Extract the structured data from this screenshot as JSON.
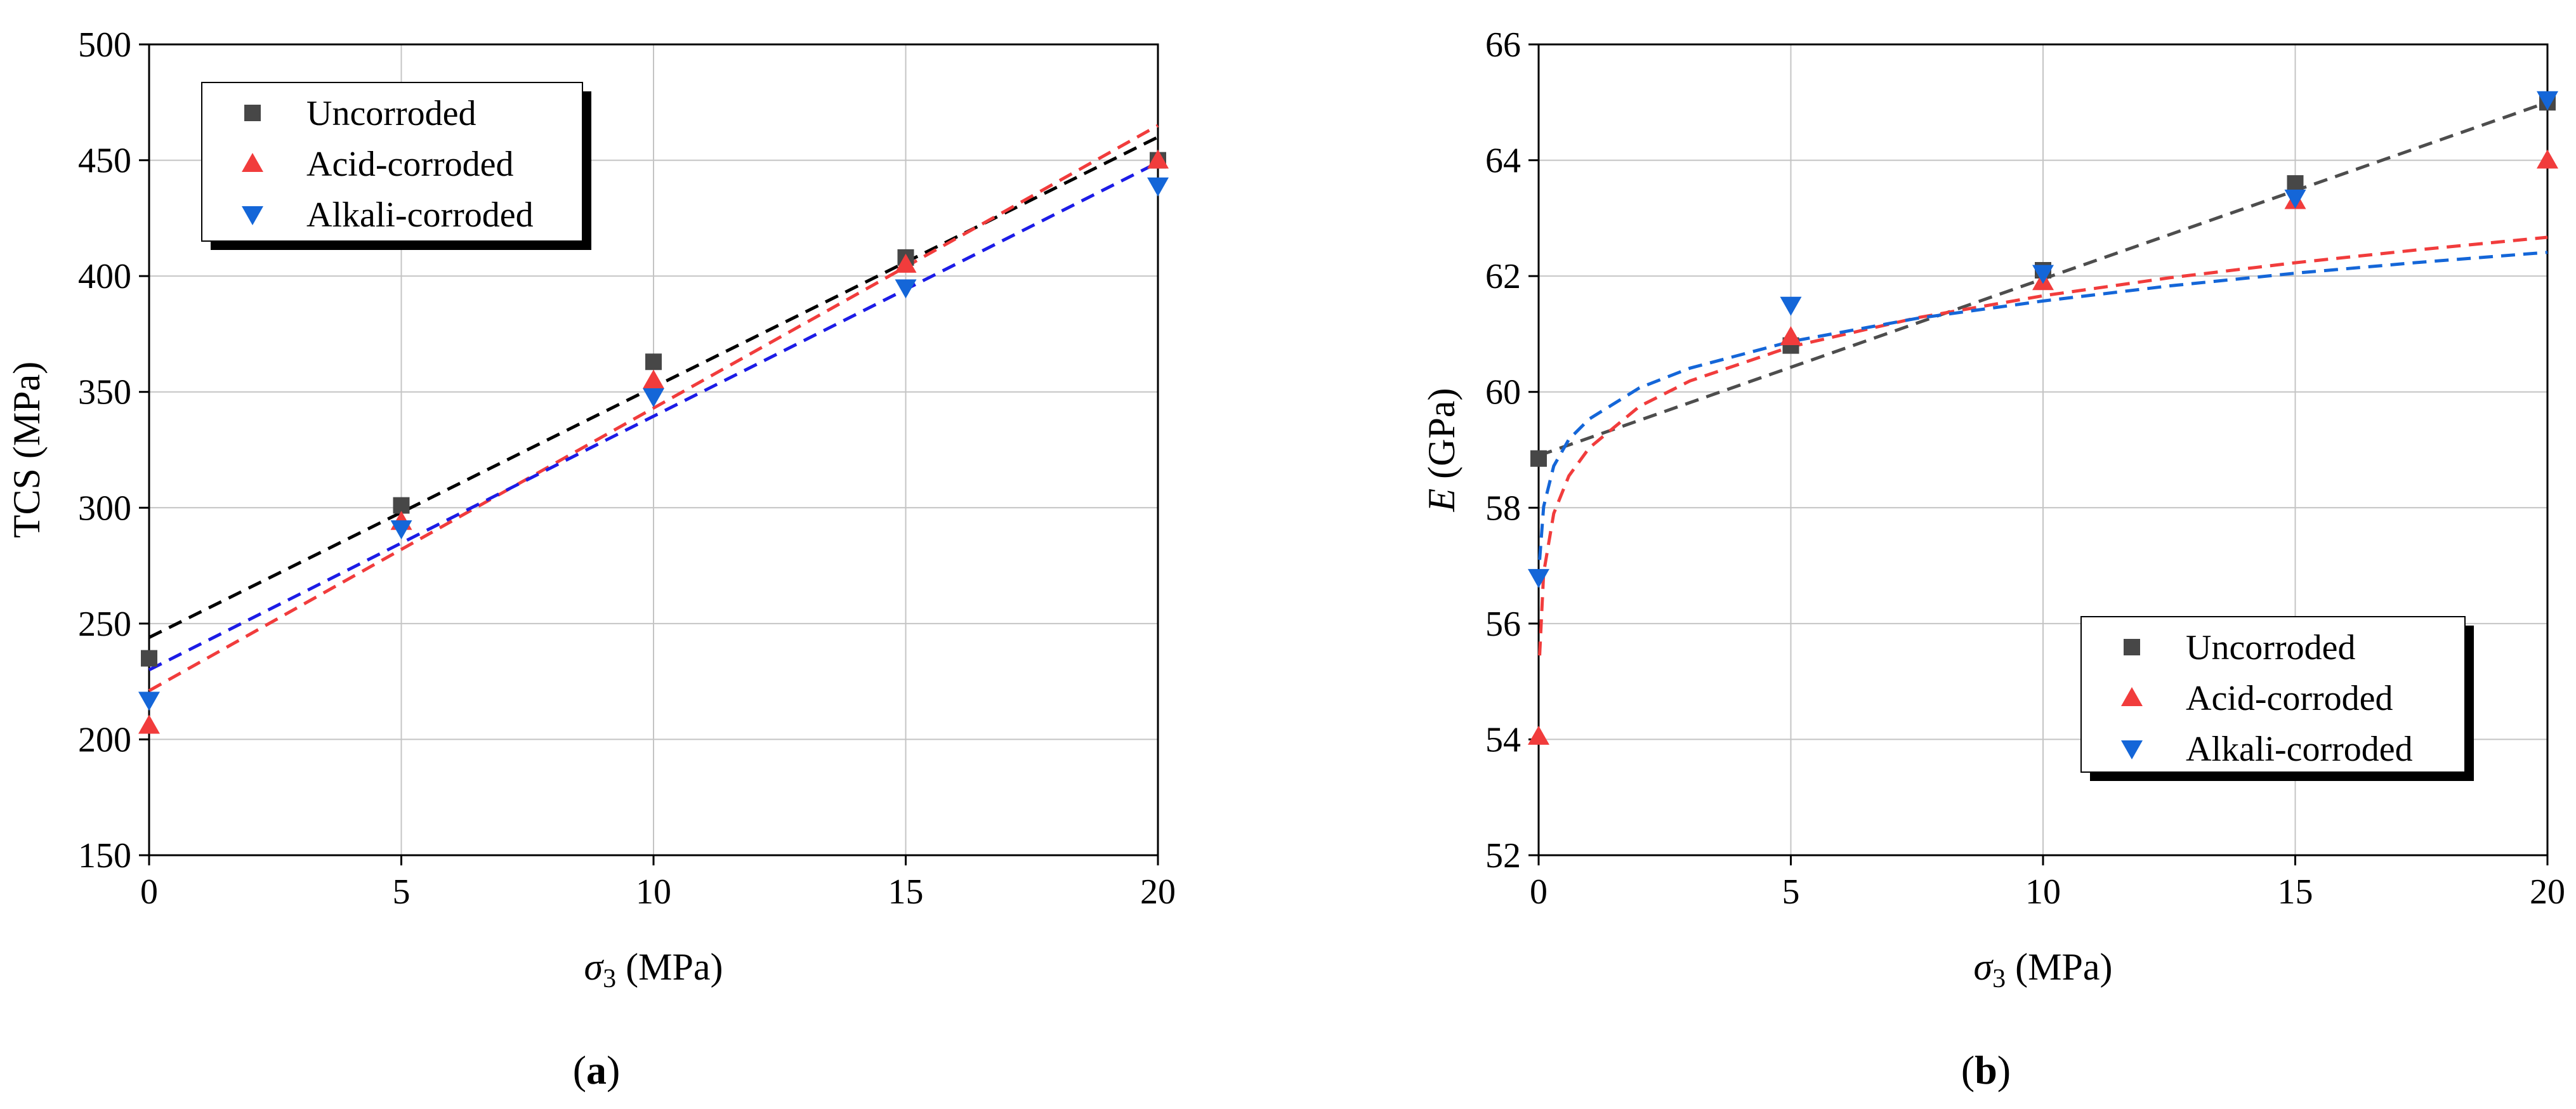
{
  "chart_data": [
    {
      "type": "scatter",
      "panel_label": "a",
      "xlabel": {
        "symbol": "σ",
        "subscript": "3",
        "unit": " (MPa)"
      },
      "ylabel": "TCS (MPa)",
      "xlim": [
        0,
        20
      ],
      "ylim": [
        150,
        500
      ],
      "xticks": [
        0,
        5,
        10,
        15,
        20
      ],
      "yticks": [
        150,
        200,
        250,
        300,
        350,
        400,
        450,
        500
      ],
      "grid": true,
      "legend_position": "top-left",
      "x": [
        0,
        5,
        10,
        15,
        20
      ],
      "series": [
        {
          "name": "Uncorroded",
          "marker": "square",
          "color": "#474747",
          "values": [
            235,
            301,
            363,
            408,
            450
          ]
        },
        {
          "name": "Acid-corroded",
          "marker": "triangle-up",
          "color": "#f13c3c",
          "values": [
            206,
            294,
            355,
            405,
            450
          ]
        },
        {
          "name": "Alkali-corroded",
          "marker": "triangle-down",
          "color": "#1466d8",
          "values": [
            217,
            291,
            348,
            395,
            439
          ]
        }
      ],
      "fit_lines": [
        {
          "series": "Uncorroded",
          "color": "#000000",
          "model": "linear",
          "x": [
            0,
            20
          ],
          "y": [
            244,
            460
          ]
        },
        {
          "series": "Acid-corroded",
          "color": "#f13c3c",
          "model": "linear",
          "x": [
            0,
            20
          ],
          "y": [
            221,
            465
          ]
        },
        {
          "series": "Alkali-corroded",
          "color": "#1c1ce6",
          "model": "linear",
          "x": [
            0,
            20
          ],
          "y": [
            230,
            449
          ]
        }
      ]
    },
    {
      "type": "scatter",
      "panel_label": "b",
      "xlabel": {
        "symbol": "σ",
        "subscript": "3",
        "unit": " (MPa)"
      },
      "ylabel": {
        "symbol": "E",
        "unit": " (GPa)"
      },
      "xlim": [
        0,
        20
      ],
      "ylim": [
        52,
        66
      ],
      "xticks": [
        0,
        5,
        10,
        15,
        20
      ],
      "yticks": [
        52,
        54,
        56,
        58,
        60,
        62,
        64,
        66
      ],
      "grid": true,
      "legend_position": "bottom-right",
      "x": [
        0,
        5,
        10,
        15,
        20
      ],
      "series": [
        {
          "name": "Uncorroded",
          "marker": "square",
          "color": "#474747",
          "values": [
            58.85,
            60.8,
            62.1,
            63.6,
            65.0
          ]
        },
        {
          "name": "Acid-corroded",
          "marker": "triangle-up",
          "color": "#f13c3c",
          "values": [
            54.05,
            60.95,
            61.9,
            63.3,
            64.0
          ]
        },
        {
          "name": "Alkali-corroded",
          "marker": "triangle-down",
          "color": "#1466d8",
          "values": [
            56.8,
            61.5,
            62.05,
            63.35,
            65.05
          ]
        }
      ],
      "fit_lines": [
        {
          "series": "Uncorroded",
          "color": "#4d4d4d",
          "model": "linear",
          "x": [
            0,
            20
          ],
          "y": [
            58.9,
            65.0
          ]
        },
        {
          "series": "Acid-corroded",
          "color": "#f13c3c",
          "model": "power",
          "x": [
            0.02,
            0.1,
            0.3,
            0.6,
            1,
            2,
            3,
            5,
            7.5,
            10,
            12.5,
            15,
            17.5,
            20
          ],
          "y": [
            55.45,
            56.87,
            57.9,
            58.55,
            59.03,
            59.75,
            60.19,
            60.78,
            61.28,
            61.66,
            61.97,
            62.23,
            62.46,
            62.67
          ]
        },
        {
          "series": "Alkali-corroded",
          "color": "#1466d8",
          "model": "power",
          "x": [
            0.02,
            0.1,
            0.3,
            0.6,
            1,
            2,
            3,
            5,
            7.5,
            10,
            12.5,
            15,
            17.5,
            20
          ],
          "y": [
            57.1,
            58.02,
            58.72,
            59.18,
            59.53,
            60.07,
            60.41,
            60.87,
            61.27,
            61.57,
            61.83,
            62.05,
            62.24,
            62.41
          ]
        }
      ]
    }
  ]
}
